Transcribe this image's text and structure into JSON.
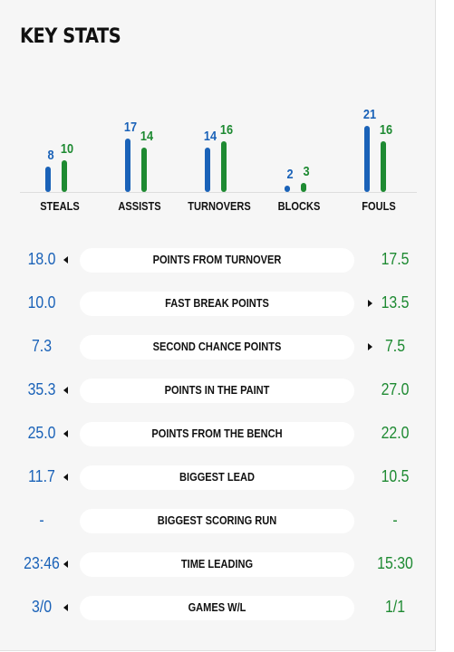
{
  "title": "KEY STATS",
  "colors": {
    "home": "#1a62b8",
    "away": "#1e8a32"
  },
  "chart_data": {
    "type": "bar",
    "categories": [
      "STEALS",
      "ASSISTS",
      "TURNOVERS",
      "BLOCKS",
      "FOULS"
    ],
    "series": [
      {
        "values": [
          8,
          17,
          14,
          2,
          21
        ]
      },
      {
        "values": [
          10,
          14,
          16,
          3,
          16
        ]
      }
    ]
  },
  "rows": [
    {
      "label": "POINTS FROM TURNOVER",
      "home": "18.0",
      "away": "17.5",
      "leader": "home"
    },
    {
      "label": "FAST BREAK POINTS",
      "home": "10.0",
      "away": "13.5",
      "leader": "away"
    },
    {
      "label": "SECOND CHANCE POINTS",
      "home": "7.3",
      "away": "7.5",
      "leader": "away"
    },
    {
      "label": "POINTS IN THE PAINT",
      "home": "35.3",
      "away": "27.0",
      "leader": "home"
    },
    {
      "label": "POINTS FROM THE BENCH",
      "home": "25.0",
      "away": "22.0",
      "leader": "home"
    },
    {
      "label": "BIGGEST LEAD",
      "home": "11.7",
      "away": "10.5",
      "leader": "home"
    },
    {
      "label": "BIGGEST SCORING RUN",
      "home": "-",
      "away": "-",
      "leader": "none"
    },
    {
      "label": "TIME LEADING",
      "home": "23:46",
      "away": "15:30",
      "leader": "home"
    },
    {
      "label": "GAMES W/L",
      "home": "3/0",
      "away": "1/1",
      "leader": "home"
    }
  ]
}
